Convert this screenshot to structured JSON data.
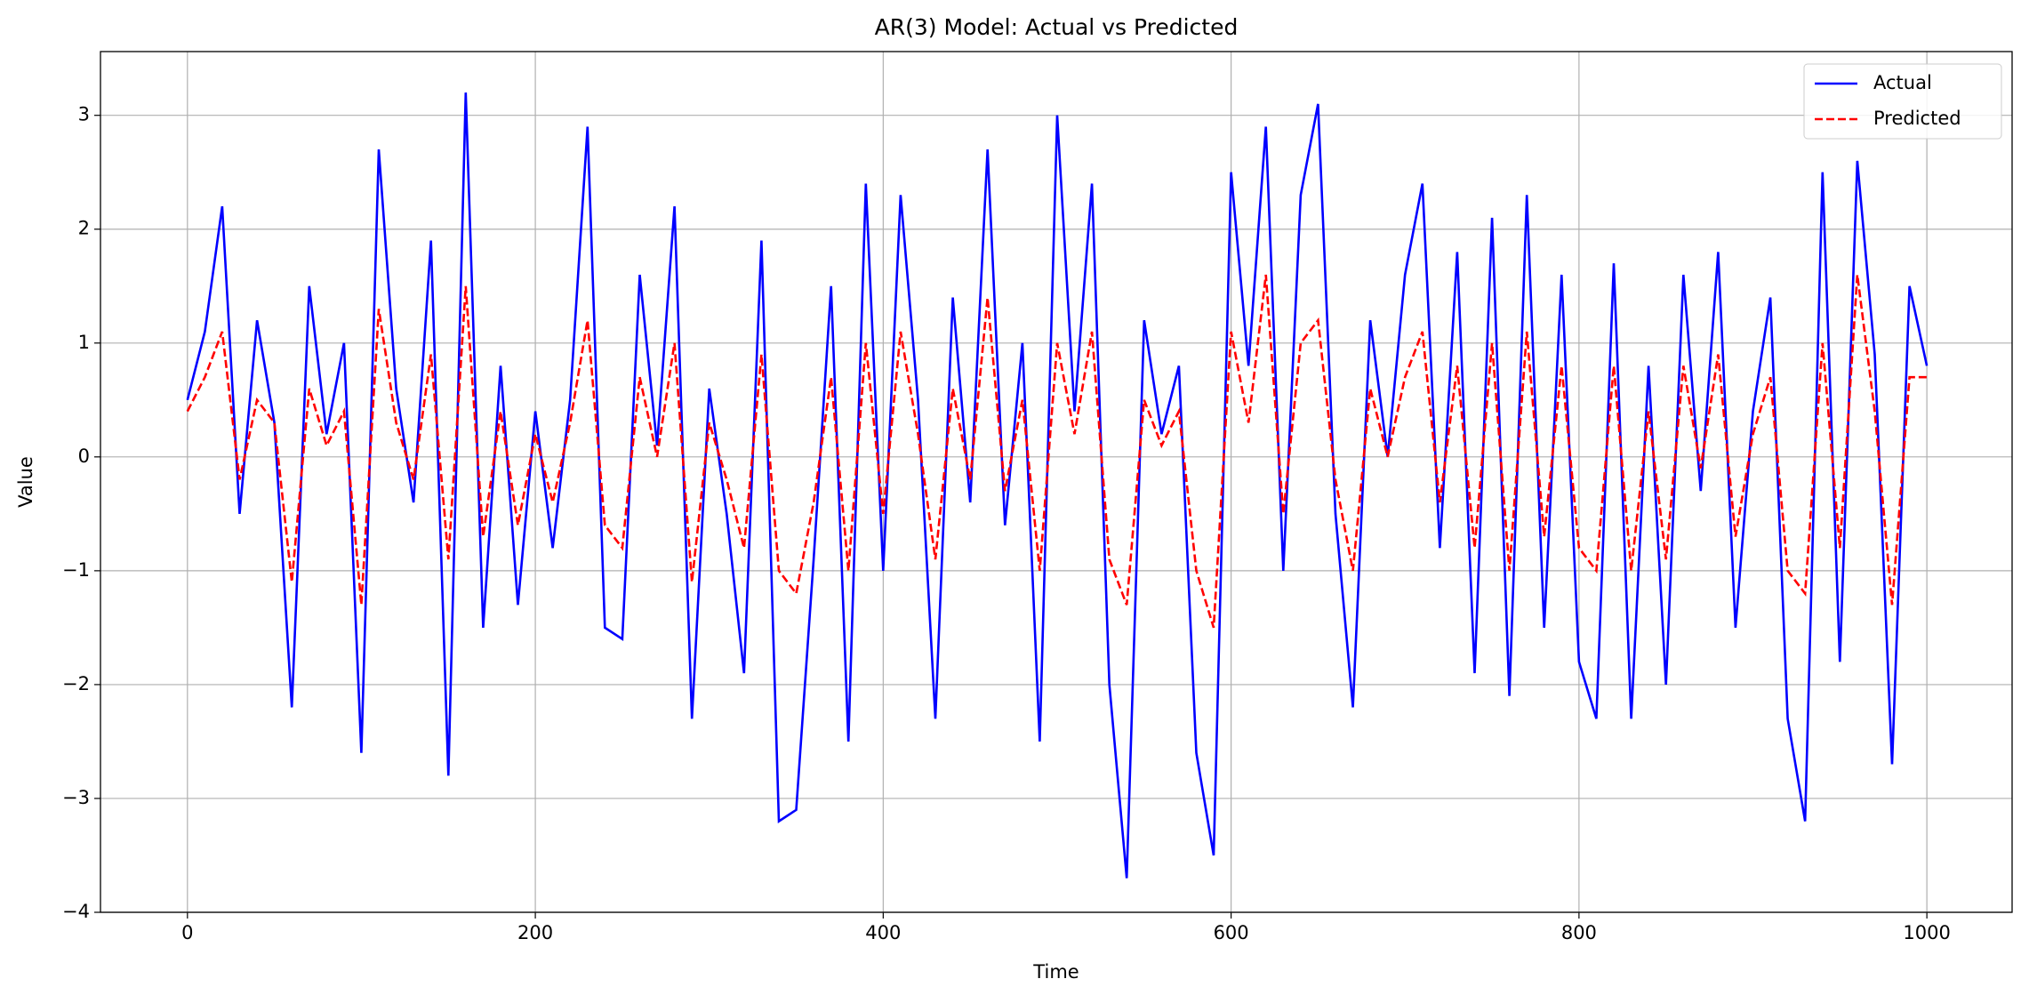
{
  "chart_data": {
    "type": "line",
    "title": "AR(3) Model: Actual vs Predicted",
    "x_label": "Time",
    "y_label": "Value",
    "x": [
      0,
      10,
      20,
      30,
      40,
      50,
      60,
      70,
      80,
      90,
      100,
      110,
      120,
      130,
      140,
      150,
      160,
      170,
      180,
      190,
      200,
      210,
      220,
      230,
      240,
      250,
      260,
      270,
      280,
      290,
      300,
      310,
      320,
      330,
      340,
      350,
      360,
      370,
      380,
      390,
      400,
      410,
      420,
      430,
      440,
      450,
      460,
      470,
      480,
      490,
      500,
      510,
      520,
      530,
      540,
      550,
      560,
      570,
      580,
      590,
      600,
      610,
      620,
      630,
      640,
      650,
      660,
      670,
      680,
      690,
      700,
      710,
      720,
      730,
      740,
      750,
      760,
      770,
      780,
      790,
      800,
      810,
      820,
      830,
      840,
      850,
      860,
      870,
      880,
      890,
      900,
      910,
      920,
      930,
      940,
      950,
      960,
      970,
      980,
      990,
      1000
    ],
    "series": [
      {
        "name": "Actual",
        "color": "#0000ff",
        "linestyle": "solid",
        "values": [
          0.5,
          1.1,
          2.2,
          -0.5,
          1.2,
          0.3,
          -2.2,
          1.5,
          0.2,
          1.0,
          -2.6,
          2.7,
          0.6,
          -0.4,
          1.9,
          -2.8,
          3.2,
          -1.5,
          0.8,
          -1.3,
          0.4,
          -0.8,
          0.5,
          2.9,
          -1.5,
          -1.6,
          1.6,
          0.1,
          2.2,
          -2.3,
          0.6,
          -0.5,
          -1.9,
          1.9,
          -3.2,
          -3.1,
          -0.9,
          1.5,
          -2.5,
          2.4,
          -1.0,
          2.3,
          0.5,
          -2.3,
          1.4,
          -0.4,
          2.7,
          -0.6,
          1.0,
          -2.5,
          3.0,
          0.4,
          2.4,
          -2.0,
          -3.7,
          1.2,
          0.2,
          0.8,
          -2.6,
          -3.5,
          2.5,
          0.8,
          2.9,
          -1.0,
          2.3,
          3.1,
          -0.5,
          -2.2,
          1.2,
          0.0,
          1.6,
          2.4,
          -0.8,
          1.8,
          -1.9,
          2.1,
          -2.1,
          2.3,
          -1.5,
          1.6,
          -1.8,
          -2.3,
          1.7,
          -2.3,
          0.8,
          -2.0,
          1.6,
          -0.3,
          1.8,
          -1.5,
          0.4,
          1.4,
          -2.3,
          -3.2,
          2.5,
          -1.8,
          2.6,
          0.9,
          -2.7,
          1.5,
          0.8
        ]
      },
      {
        "name": "Predicted",
        "color": "#ff0000",
        "linestyle": "dashed",
        "values": [
          0.4,
          0.7,
          1.1,
          -0.2,
          0.5,
          0.3,
          -1.1,
          0.6,
          0.1,
          0.4,
          -1.3,
          1.3,
          0.3,
          -0.2,
          0.9,
          -0.9,
          1.5,
          -0.7,
          0.4,
          -0.6,
          0.2,
          -0.4,
          0.3,
          1.2,
          -0.6,
          -0.8,
          0.7,
          0.0,
          1.0,
          -1.1,
          0.3,
          -0.2,
          -0.8,
          0.9,
          -1.0,
          -1.2,
          -0.4,
          0.7,
          -1.0,
          1.0,
          -0.5,
          1.1,
          0.2,
          -0.9,
          0.6,
          -0.2,
          1.4,
          -0.3,
          0.5,
          -1.0,
          1.0,
          0.2,
          1.1,
          -0.9,
          -1.3,
          0.5,
          0.1,
          0.4,
          -1.0,
          -1.5,
          1.1,
          0.3,
          1.6,
          -0.5,
          1.0,
          1.2,
          -0.2,
          -1.0,
          0.6,
          0.0,
          0.7,
          1.1,
          -0.4,
          0.8,
          -0.8,
          1.0,
          -1.0,
          1.1,
          -0.7,
          0.8,
          -0.8,
          -1.0,
          0.8,
          -1.0,
          0.4,
          -0.9,
          0.8,
          -0.1,
          0.9,
          -0.7,
          0.2,
          0.7,
          -1.0,
          -1.2,
          1.0,
          -0.8,
          1.6,
          0.4,
          -1.3,
          0.7,
          0.7
        ]
      }
    ],
    "xlim": [
      -50,
      1049
    ],
    "xticks": [
      0,
      200,
      400,
      600,
      800,
      1000
    ],
    "ylim": [
      -4,
      3.56
    ],
    "yticks": [
      {
        "value": -4,
        "label": "−4"
      },
      {
        "value": -3,
        "label": "−3"
      },
      {
        "value": -2,
        "label": "−2"
      },
      {
        "value": -1,
        "label": "−1"
      },
      0,
      1,
      2,
      3
    ],
    "grid": true,
    "legend": "upper-right"
  }
}
